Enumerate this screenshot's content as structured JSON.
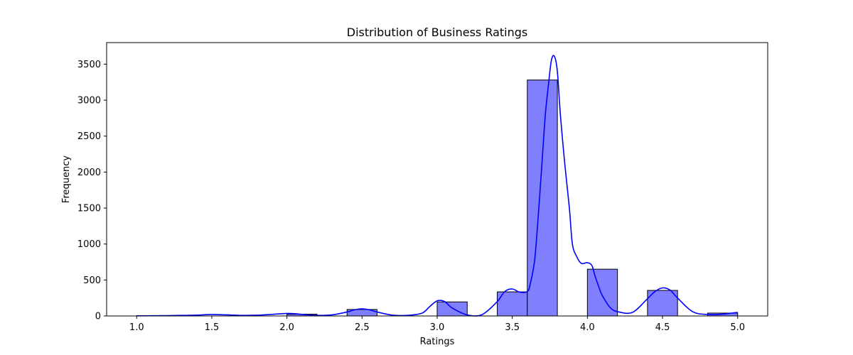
{
  "chart_data": {
    "type": "bar",
    "title": "Distribution of Business Ratings",
    "xlabel": "Ratings",
    "ylabel": "Frequency",
    "xlim": [
      0.8,
      5.2
    ],
    "ylim": [
      0,
      3800
    ],
    "x_ticks": [
      "1.0",
      "1.5",
      "2.0",
      "2.5",
      "3.0",
      "3.5",
      "4.0",
      "4.5",
      "5.0"
    ],
    "y_ticks": [
      "0",
      "500",
      "1000",
      "1500",
      "2000",
      "2500",
      "3000",
      "3500"
    ],
    "bin_edges": [
      1.0,
      1.2,
      1.4,
      1.6,
      1.8,
      2.0,
      2.2,
      2.4,
      2.6,
      2.8,
      3.0,
      3.2,
      3.4,
      3.6,
      3.8,
      4.0,
      4.2,
      4.4,
      4.6,
      4.8,
      5.0
    ],
    "values": [
      5,
      0,
      0,
      0,
      0,
      25,
      0,
      90,
      0,
      0,
      195,
      0,
      335,
      3280,
      0,
      650,
      0,
      355,
      0,
      40
    ],
    "bar_color": "#8080ff",
    "bar_edge_color": "#000000",
    "kde": {
      "color": "#0000ff",
      "x": [
        1.0,
        1.1,
        1.2,
        1.3,
        1.4,
        1.5,
        1.6,
        1.7,
        1.8,
        1.9,
        2.0,
        2.05,
        2.1,
        2.2,
        2.3,
        2.4,
        2.45,
        2.5,
        2.55,
        2.6,
        2.7,
        2.8,
        2.9,
        2.95,
        3.0,
        3.05,
        3.1,
        3.2,
        3.3,
        3.4,
        3.45,
        3.5,
        3.55,
        3.6,
        3.62,
        3.65,
        3.68,
        3.7,
        3.72,
        3.74,
        3.76,
        3.78,
        3.8,
        3.82,
        3.85,
        3.88,
        3.9,
        3.93,
        3.96,
        4.0,
        4.03,
        4.05,
        4.08,
        4.1,
        4.15,
        4.2,
        4.3,
        4.4,
        4.45,
        4.5,
        4.55,
        4.6,
        4.7,
        4.8,
        4.9,
        5.0
      ],
      "y": [
        2,
        3,
        5,
        8,
        12,
        20,
        15,
        8,
        10,
        22,
        35,
        32,
        22,
        8,
        15,
        55,
        85,
        100,
        85,
        55,
        12,
        8,
        40,
        130,
        210,
        200,
        110,
        15,
        20,
        200,
        340,
        375,
        330,
        340,
        450,
        800,
        1600,
        2200,
        2800,
        3200,
        3550,
        3610,
        3400,
        2800,
        2100,
        1500,
        1000,
        820,
        730,
        740,
        700,
        560,
        380,
        280,
        120,
        60,
        50,
        240,
        340,
        390,
        360,
        250,
        60,
        20,
        25,
        50
      ]
    }
  }
}
